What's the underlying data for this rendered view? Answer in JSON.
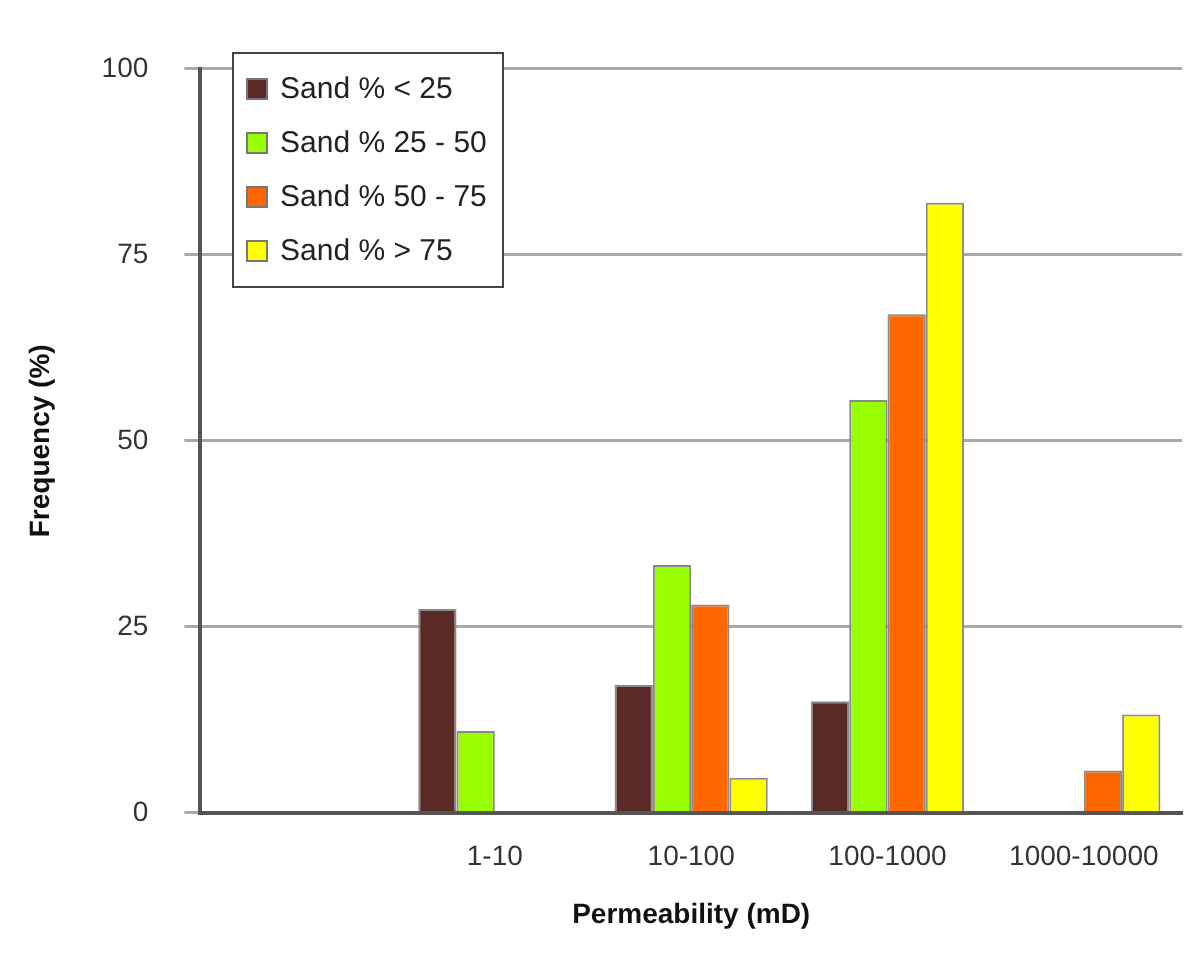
{
  "chart_data": {
    "type": "bar",
    "xlabel": "Permeability (mD)",
    "ylabel": "Frequency (%)",
    "categories": [
      null,
      "1-10",
      "10-100",
      "100-1000",
      "1000-10000"
    ],
    "series": [
      {
        "name": "Sand % < 25",
        "color": "#5a2a27",
        "values": [
          null,
          27.4,
          17.2,
          15,
          0
        ]
      },
      {
        "name": "Sand % 25 - 50",
        "color": "#99ff00",
        "values": [
          null,
          11,
          33.3,
          55.5,
          0
        ]
      },
      {
        "name": "Sand % 50 - 75",
        "color": "#ff6600",
        "values": [
          null,
          0,
          28,
          67,
          5.7
        ]
      },
      {
        "name": "Sand % > 75",
        "color": "#ffff00",
        "values": [
          null,
          0,
          4.7,
          82,
          13.2
        ]
      }
    ],
    "ylim": [
      0,
      100
    ],
    "yticks": [
      0,
      25,
      50,
      75,
      100
    ],
    "grid": "y",
    "legend": "top left"
  }
}
